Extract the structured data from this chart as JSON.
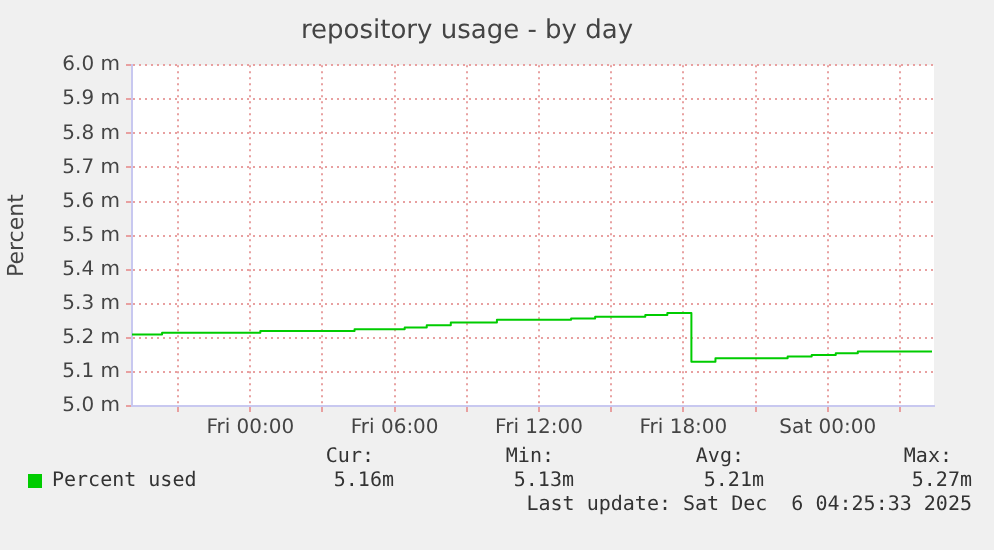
{
  "chart_data": {
    "type": "step",
    "title": "repository usage - by day",
    "ylabel": "Percent",
    "x": [
      "2025-12-04T19:05",
      "2025-12-04T20:20",
      "2025-12-05T00:25",
      "2025-12-05T04:20",
      "2025-12-05T06:25",
      "2025-12-05T07:20",
      "2025-12-05T08:20",
      "2025-12-05T10:15",
      "2025-12-05T13:20",
      "2025-12-05T14:20",
      "2025-12-05T16:25",
      "2025-12-05T17:20",
      "2025-12-05T18:20",
      "2025-12-05T19:20",
      "2025-12-05T22:20",
      "2025-12-05T23:20",
      "2025-12-06T00:20",
      "2025-12-06T01:15",
      "2025-12-06T04:20"
    ],
    "series": [
      {
        "name": "Percent used",
        "color": "#00cc00",
        "values": [
          5.21,
          5.215,
          5.22,
          5.225,
          5.23,
          5.237,
          5.245,
          5.253,
          5.257,
          5.262,
          5.267,
          5.273,
          5.13,
          5.14,
          5.145,
          5.15,
          5.155,
          5.16,
          5.16
        ]
      }
    ],
    "xlim": [
      "2025-12-04T19:05",
      "2025-12-06T04:25"
    ],
    "xticks": [
      {
        "value": "2025-12-04T21:00",
        "label": null
      },
      {
        "value": "2025-12-05T00:00",
        "label": "Fri 00:00"
      },
      {
        "value": "2025-12-05T03:00",
        "label": null
      },
      {
        "value": "2025-12-05T06:00",
        "label": "Fri 06:00"
      },
      {
        "value": "2025-12-05T09:00",
        "label": null
      },
      {
        "value": "2025-12-05T12:00",
        "label": "Fri 12:00"
      },
      {
        "value": "2025-12-05T15:00",
        "label": null
      },
      {
        "value": "2025-12-05T18:00",
        "label": "Fri 18:00"
      },
      {
        "value": "2025-12-05T21:00",
        "label": null
      },
      {
        "value": "2025-12-06T00:00",
        "label": "Sat 00:00"
      },
      {
        "value": "2025-12-06T03:00",
        "label": null
      }
    ],
    "ylim": [
      5.0,
      6.0
    ],
    "yticks": [
      {
        "value": 5.0,
        "label": "5.0 m"
      },
      {
        "value": 5.1,
        "label": "5.1 m"
      },
      {
        "value": 5.2,
        "label": "5.2 m"
      },
      {
        "value": 5.3,
        "label": "5.3 m"
      },
      {
        "value": 5.4,
        "label": "5.4 m"
      },
      {
        "value": 5.5,
        "label": "5.5 m"
      },
      {
        "value": 5.6,
        "label": "5.6 m"
      },
      {
        "value": 5.7,
        "label": "5.7 m"
      },
      {
        "value": 5.8,
        "label": "5.8 m"
      },
      {
        "value": 5.9,
        "label": "5.9 m"
      },
      {
        "value": 6.0,
        "label": "6.0 m"
      }
    ],
    "grid": true,
    "legend": "bottom",
    "annotations": [
      "Cur:",
      "Min:",
      "Avg:",
      "Max:",
      "5.16m",
      "5.13m",
      "5.21m",
      "5.27m",
      "Last update: Sat Dec  6 04:25:33 2025"
    ]
  }
}
